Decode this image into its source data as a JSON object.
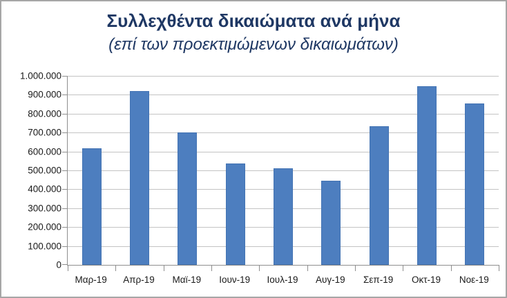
{
  "chart_data": {
    "type": "bar",
    "title": "Συλλεχθέντα δικαιώματα ανά μήνα",
    "subtitle": "(επί των προεκτιμώμενων δικαιωμάτων)",
    "categories": [
      "Μαρ-19",
      "Απρ-19",
      "Μαϊ-19",
      "Ιουν-19",
      "Ιουλ-19",
      "Αυγ-19",
      "Σεπ-19",
      "Οκτ-19",
      "Νοε-19"
    ],
    "values": [
      615000,
      920000,
      700000,
      535000,
      510000,
      445000,
      735000,
      945000,
      855000
    ],
    "xlabel": "",
    "ylabel": "",
    "ylim": [
      0,
      1000000
    ],
    "y_tick_step": 100000,
    "y_ticks": [
      {
        "value": 0,
        "label": "0"
      },
      {
        "value": 100000,
        "label": "100.000"
      },
      {
        "value": 200000,
        "label": "200.000"
      },
      {
        "value": 300000,
        "label": "300.000"
      },
      {
        "value": 400000,
        "label": "400.000"
      },
      {
        "value": 500000,
        "label": "500.000"
      },
      {
        "value": 600000,
        "label": "600.000"
      },
      {
        "value": 700000,
        "label": "700.000"
      },
      {
        "value": 800000,
        "label": "800.000"
      },
      {
        "value": 900000,
        "label": "900.000"
      },
      {
        "value": 1000000,
        "label": "1.000.000"
      }
    ],
    "grid": true,
    "legend": false,
    "colors": {
      "bar": "#4d7ebf",
      "bar_border": "#4373b3",
      "title_text": "#1f3864",
      "tick_label_text": "#1a1a1a",
      "gridline": "#c3c3c3",
      "axis_line": "#8e8e8e",
      "frame_border": "#a6a6a6",
      "background": "#ffffff"
    }
  }
}
